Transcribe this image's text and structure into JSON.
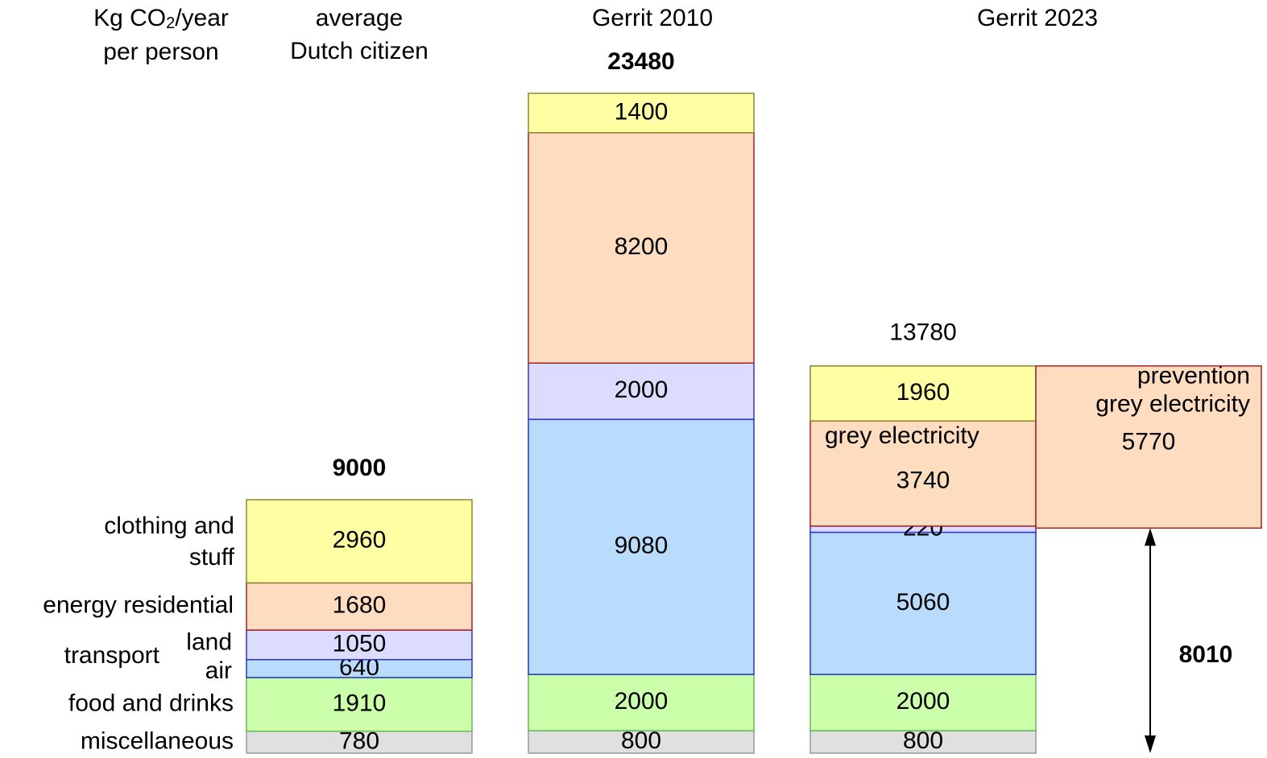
{
  "chart_data": {
    "type": "stacked-bar",
    "y_label": [
      "Kg CO",
      "2",
      "/year"
    ],
    "y_label_line2": "per person",
    "categories": [
      [
        "average",
        "Dutch citizen"
      ],
      [
        "Gerrit 2010"
      ],
      [
        "Gerrit 2023"
      ]
    ],
    "series": [
      {
        "name": "miscellaneous",
        "color": "#e0e0e0",
        "border": "#999999",
        "values": [
          780,
          800,
          800
        ]
      },
      {
        "name": "food and drinks",
        "color": "#ccffaa",
        "border": "#66bb55",
        "values": [
          1910,
          2000,
          2000
        ]
      },
      {
        "name": "air",
        "color": "#b9dcfd",
        "border": "#2233cc",
        "values": [
          640,
          9080,
          5060
        ]
      },
      {
        "name": "land",
        "color": "#dcdcfe",
        "border": "#3333cc",
        "values": [
          1050,
          2000,
          220
        ]
      },
      {
        "name": "energy residential",
        "color": "#fddcc0",
        "border": "#aa2222",
        "values": [
          1680,
          8200,
          3740
        ]
      },
      {
        "name": "clothing and stuff",
        "color": "#ffffa4",
        "border": "#888833",
        "values": [
          2960,
          1400,
          1960
        ]
      }
    ],
    "group_label": "transport",
    "totals": [
      9000,
      23480,
      13780
    ],
    "totals_bold": [
      true,
      true,
      false
    ],
    "segment_note": "grey electricity",
    "prevention": {
      "label": [
        "prevention",
        "grey electricity"
      ],
      "value": 5770
    },
    "remaining": {
      "value": 8010
    }
  }
}
